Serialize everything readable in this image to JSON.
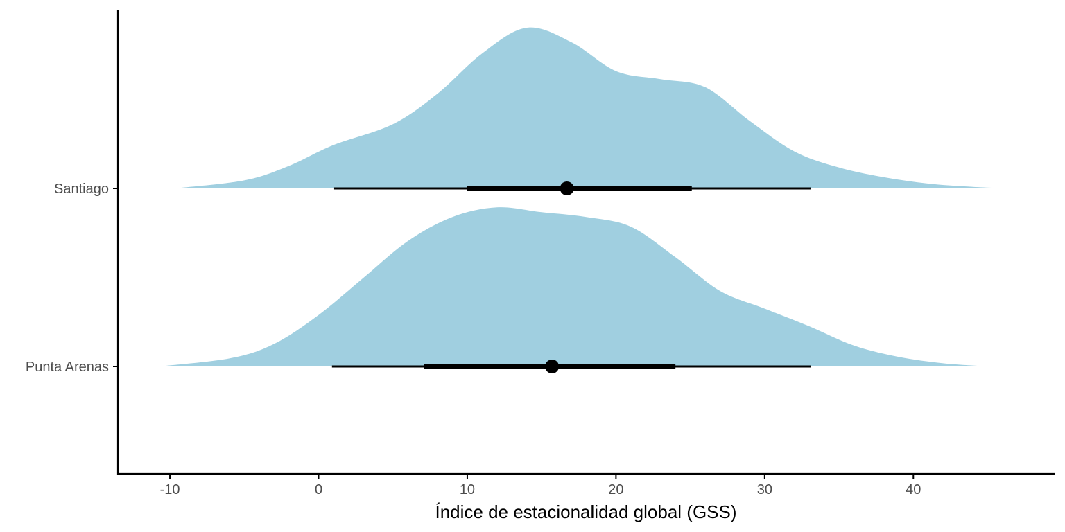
{
  "chart_data": {
    "type": "halfeye",
    "title": "",
    "xlabel": "Índice de estacionalidad global (GSS)",
    "ylabel": "",
    "xlim": [
      -13.5,
      49.5
    ],
    "x_ticks": [
      -10,
      0,
      10,
      20,
      30,
      40
    ],
    "x_tick_labels": [
      "-10",
      "0",
      "10",
      "20",
      "30",
      "40"
    ],
    "categories": [
      "Santiago",
      "Punta Arenas"
    ],
    "grid": false,
    "legend": "none",
    "colors": {
      "density_fill": "#a0cfe0",
      "interval": "#000000",
      "axis": "#000000",
      "tick_label": "#4d4d4d"
    },
    "series": [
      {
        "category": "Santiago",
        "point": 16.7,
        "interval_66": [
          10.0,
          25.1
        ],
        "interval_95": [
          1.0,
          33.1
        ],
        "density": [
          [
            -9.7,
            0.0
          ],
          [
            -5,
            0.05
          ],
          [
            -2,
            0.14
          ],
          [
            1,
            0.27
          ],
          [
            5,
            0.4
          ],
          [
            8,
            0.59
          ],
          [
            11,
            0.84
          ],
          [
            14,
            1.0
          ],
          [
            17,
            0.91
          ],
          [
            20,
            0.73
          ],
          [
            23,
            0.68
          ],
          [
            26,
            0.63
          ],
          [
            29,
            0.42
          ],
          [
            32,
            0.23
          ],
          [
            35,
            0.13
          ],
          [
            38,
            0.07
          ],
          [
            41,
            0.03
          ],
          [
            44,
            0.01
          ],
          [
            46.5,
            0.0
          ]
        ]
      },
      {
        "category": "Punta Arenas",
        "point": 15.7,
        "interval_66": [
          7.1,
          24.0
        ],
        "interval_95": [
          0.9,
          33.1
        ],
        "density": [
          [
            -10.8,
            0.0
          ],
          [
            -6,
            0.05
          ],
          [
            -3,
            0.14
          ],
          [
            0,
            0.32
          ],
          [
            3,
            0.55
          ],
          [
            6,
            0.78
          ],
          [
            9,
            0.93
          ],
          [
            12,
            0.99
          ],
          [
            15,
            0.96
          ],
          [
            18,
            0.93
          ],
          [
            21,
            0.87
          ],
          [
            24,
            0.68
          ],
          [
            27,
            0.47
          ],
          [
            30,
            0.36
          ],
          [
            33,
            0.25
          ],
          [
            36,
            0.13
          ],
          [
            39,
            0.06
          ],
          [
            42,
            0.02
          ],
          [
            45,
            0.0
          ]
        ]
      }
    ]
  }
}
